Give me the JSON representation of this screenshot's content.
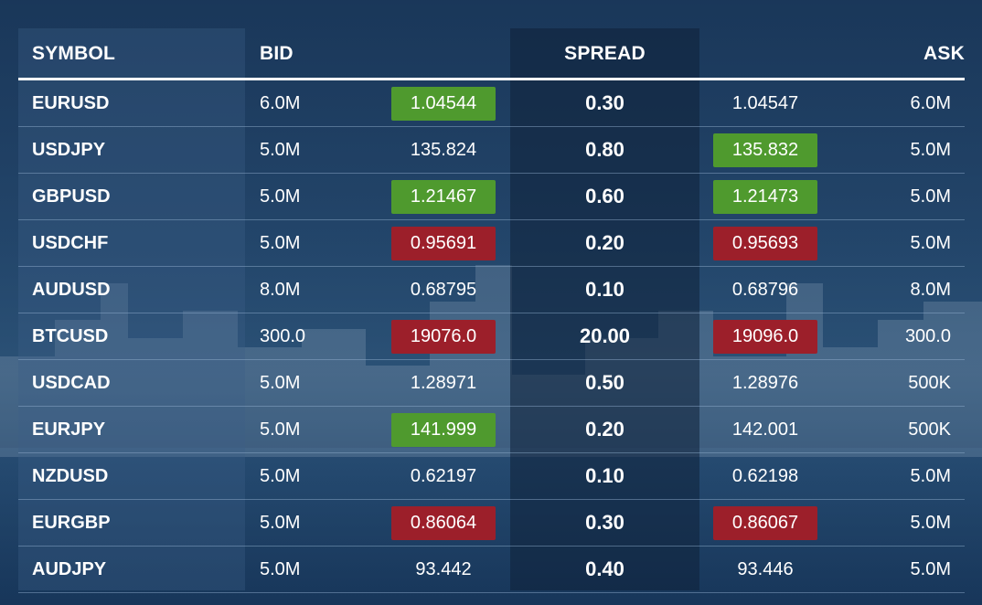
{
  "colors": {
    "up": "#4f9a2e",
    "down": "#9c1f2a",
    "text": "#ffffff"
  },
  "headers": {
    "symbol": "SYMBOL",
    "bid": "BID",
    "spread": "SPREAD",
    "ask": "ASK"
  },
  "rows": [
    {
      "symbol": "EURUSD",
      "bid_size": "6.0M",
      "bid": "1.04544",
      "bid_state": "up",
      "spread": "0.30",
      "ask": "1.04547",
      "ask_state": "none",
      "ask_size": "6.0M"
    },
    {
      "symbol": "USDJPY",
      "bid_size": "5.0M",
      "bid": "135.824",
      "bid_state": "none",
      "spread": "0.80",
      "ask": "135.832",
      "ask_state": "up",
      "ask_size": "5.0M"
    },
    {
      "symbol": "GBPUSD",
      "bid_size": "5.0M",
      "bid": "1.21467",
      "bid_state": "up",
      "spread": "0.60",
      "ask": "1.21473",
      "ask_state": "up",
      "ask_size": "5.0M"
    },
    {
      "symbol": "USDCHF",
      "bid_size": "5.0M",
      "bid": "0.95691",
      "bid_state": "down",
      "spread": "0.20",
      "ask": "0.95693",
      "ask_state": "down",
      "ask_size": "5.0M"
    },
    {
      "symbol": "AUDUSD",
      "bid_size": "8.0M",
      "bid": "0.68795",
      "bid_state": "none",
      "spread": "0.10",
      "ask": "0.68796",
      "ask_state": "none",
      "ask_size": "8.0M"
    },
    {
      "symbol": "BTCUSD",
      "bid_size": "300.0",
      "bid": "19076.0",
      "bid_state": "down",
      "spread": "20.00",
      "ask": "19096.0",
      "ask_state": "down",
      "ask_size": "300.0"
    },
    {
      "symbol": "USDCAD",
      "bid_size": "5.0M",
      "bid": "1.28971",
      "bid_state": "none",
      "spread": "0.50",
      "ask": "1.28976",
      "ask_state": "none",
      "ask_size": "500K"
    },
    {
      "symbol": "EURJPY",
      "bid_size": "5.0M",
      "bid": "141.999",
      "bid_state": "up",
      "spread": "0.20",
      "ask": "142.001",
      "ask_state": "none",
      "ask_size": "500K"
    },
    {
      "symbol": "NZDUSD",
      "bid_size": "5.0M",
      "bid": "0.62197",
      "bid_state": "none",
      "spread": "0.10",
      "ask": "0.62198",
      "ask_state": "none",
      "ask_size": "5.0M"
    },
    {
      "symbol": "EURGBP",
      "bid_size": "5.0M",
      "bid": "0.86064",
      "bid_state": "down",
      "spread": "0.30",
      "ask": "0.86067",
      "ask_state": "down",
      "ask_size": "5.0M"
    },
    {
      "symbol": "AUDJPY",
      "bid_size": "5.0M",
      "bid": "93.442",
      "bid_state": "none",
      "spread": "0.40",
      "ask": "93.446",
      "ask_state": "none",
      "ask_size": "5.0M"
    }
  ]
}
